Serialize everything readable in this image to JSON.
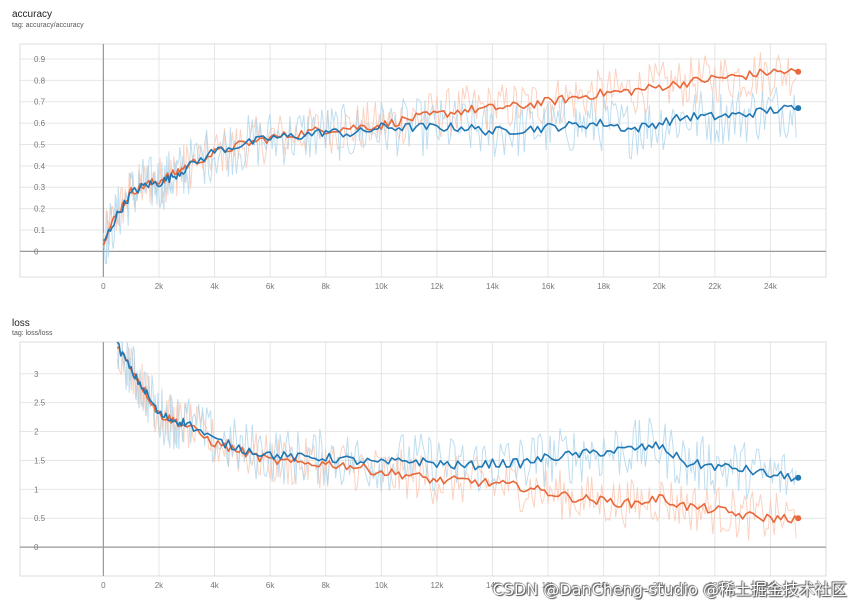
{
  "charts": {
    "accuracy": {
      "title": "accuracy",
      "tag": "tag: accuracy/accuracy"
    },
    "loss": {
      "title": "loss",
      "tag": "tag: loss/loss"
    }
  },
  "watermark": "CSDN @DanCheng-studio",
  "watermark_overlay": "@稀土掘金技术社区",
  "colors": {
    "series_a": "#e8683a",
    "series_b": "#1f77b4",
    "series_a_raw": "#f9c3ac",
    "series_b_raw": "#a9d3ea",
    "grid": "#e6e6e6",
    "axis": "#999999"
  },
  "chart_data": [
    {
      "type": "line",
      "name": "accuracy",
      "title": "accuracy",
      "xlim": [
        -3000,
        26000
      ],
      "ylim": [
        -0.12,
        0.97
      ],
      "x_ticks": [
        0,
        2000,
        4000,
        6000,
        8000,
        10000,
        12000,
        14000,
        16000,
        18000,
        20000,
        22000,
        24000
      ],
      "x_tick_labels": [
        "0",
        "2k",
        "4k",
        "6k",
        "8k",
        "10k",
        "12k",
        "14k",
        "16k",
        "18k",
        "20k",
        "22k",
        "24k"
      ],
      "y_ticks": [
        0,
        0.1,
        0.2,
        0.3,
        0.4,
        0.5,
        0.6,
        0.7,
        0.8,
        0.9
      ],
      "y_tick_labels": [
        "0",
        "0.1",
        "0.2",
        "0.3",
        "0.4",
        "0.5",
        "0.6",
        "0.7",
        "0.8",
        "0.9"
      ],
      "grid": true,
      "x": [
        0,
        500,
        1000,
        1500,
        2000,
        2500,
        3000,
        4000,
        5000,
        6000,
        7000,
        8000,
        9000,
        10000,
        11000,
        12000,
        13000,
        14000,
        15000,
        16000,
        17000,
        18000,
        19000,
        20000,
        21000,
        22000,
        23000,
        24000,
        25000
      ],
      "series": [
        {
          "color": "orange",
          "values": [
            0.05,
            0.18,
            0.28,
            0.31,
            0.33,
            0.36,
            0.4,
            0.46,
            0.5,
            0.53,
            0.55,
            0.57,
            0.58,
            0.59,
            0.62,
            0.64,
            0.66,
            0.67,
            0.68,
            0.7,
            0.72,
            0.74,
            0.75,
            0.77,
            0.79,
            0.81,
            0.82,
            0.84,
            0.84
          ]
        },
        {
          "color": "blue",
          "values": [
            0.04,
            0.17,
            0.27,
            0.31,
            0.32,
            0.35,
            0.39,
            0.47,
            0.5,
            0.53,
            0.54,
            0.56,
            0.55,
            0.58,
            0.58,
            0.58,
            0.58,
            0.56,
            0.57,
            0.58,
            0.59,
            0.6,
            0.57,
            0.6,
            0.63,
            0.63,
            0.64,
            0.66,
            0.67
          ]
        }
      ]
    },
    {
      "type": "line",
      "name": "loss",
      "title": "loss",
      "xlim": [
        -3000,
        26000
      ],
      "ylim": [
        -0.5,
        3.55
      ],
      "x_ticks": [
        0,
        2000,
        4000,
        6000,
        8000,
        10000,
        12000,
        14000,
        16000,
        18000,
        20000,
        22000,
        24000
      ],
      "x_tick_labels": [
        "0",
        "2k",
        "4k",
        "6k",
        "8k",
        "10k",
        "12k",
        "14k",
        "16k",
        "18k",
        "20k",
        "22k",
        "24k"
      ],
      "y_ticks": [
        0,
        0.5,
        1,
        1.5,
        2,
        2.5,
        3
      ],
      "y_tick_labels": [
        "0",
        "0.5",
        "1",
        "1.5",
        "2",
        "2.5",
        "3"
      ],
      "grid": true,
      "x": [
        500,
        1000,
        1500,
        2000,
        2500,
        3000,
        4000,
        5000,
        6000,
        7000,
        8000,
        9000,
        10000,
        11000,
        12000,
        13000,
        14000,
        15000,
        16000,
        17000,
        18000,
        19000,
        20000,
        21000,
        22000,
        23000,
        24000,
        25000
      ],
      "series": [
        {
          "color": "orange",
          "values": [
            3.5,
            3.1,
            2.7,
            2.3,
            2.2,
            2.1,
            1.8,
            1.65,
            1.5,
            1.45,
            1.45,
            1.4,
            1.3,
            1.25,
            1.15,
            1.15,
            1.1,
            1.05,
            0.95,
            0.85,
            0.8,
            0.75,
            0.85,
            0.7,
            0.65,
            0.55,
            0.5,
            0.5
          ]
        },
        {
          "color": "blue",
          "values": [
            3.5,
            3.05,
            2.7,
            2.3,
            2.2,
            2.15,
            1.85,
            1.7,
            1.6,
            1.55,
            1.55,
            1.5,
            1.45,
            1.5,
            1.45,
            1.4,
            1.45,
            1.45,
            1.55,
            1.6,
            1.65,
            1.7,
            1.75,
            1.45,
            1.4,
            1.35,
            1.25,
            1.2
          ]
        }
      ]
    }
  ]
}
